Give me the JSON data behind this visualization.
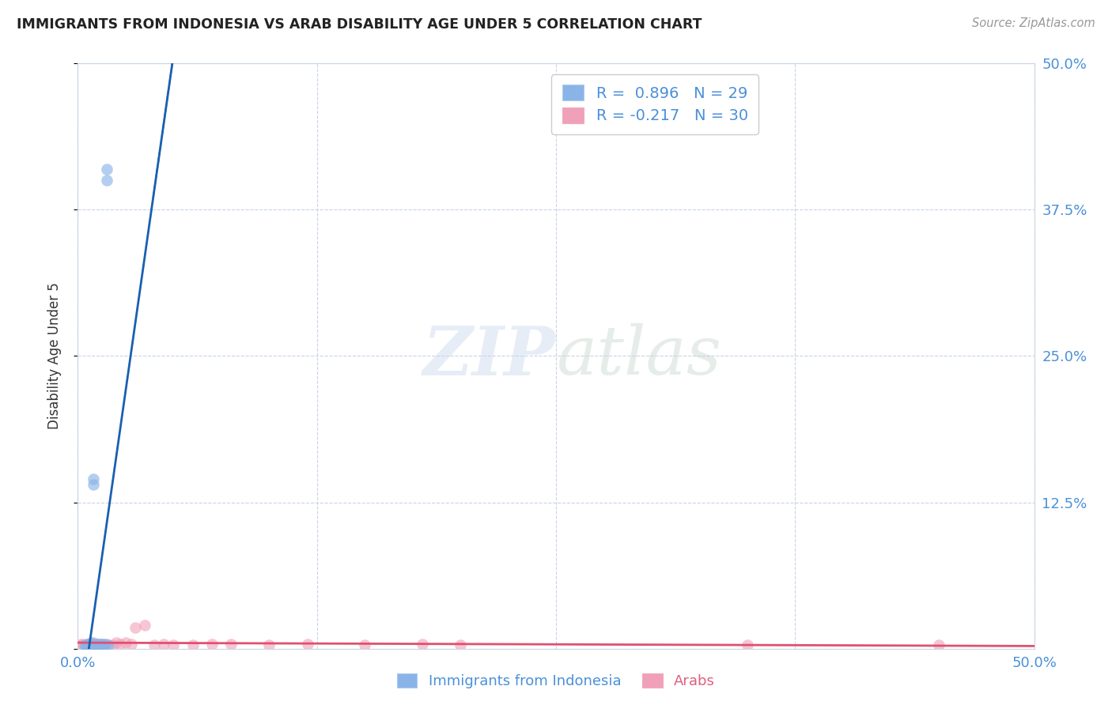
{
  "title": "IMMIGRANTS FROM INDONESIA VS ARAB DISABILITY AGE UNDER 5 CORRELATION CHART",
  "source": "Source: ZipAtlas.com",
  "xlabel_blue": "Immigrants from Indonesia",
  "xlabel_pink": "Arabs",
  "ylabel": "Disability Age Under 5",
  "xlim": [
    0.0,
    0.5
  ],
  "ylim": [
    0.0,
    0.5
  ],
  "xticks": [
    0.0,
    0.125,
    0.25,
    0.375,
    0.5
  ],
  "yticks": [
    0.0,
    0.125,
    0.25,
    0.375,
    0.5
  ],
  "right_ytick_labels": [
    "",
    "12.5%",
    "25.0%",
    "37.5%",
    "50.0%"
  ],
  "xtick_labels": [
    "0.0%",
    "",
    "",
    "",
    "50.0%"
  ],
  "blue_R": 0.896,
  "blue_N": 29,
  "pink_R": -0.217,
  "pink_N": 30,
  "blue_color": "#8ab4e8",
  "pink_color": "#f0a0b8",
  "blue_line_color": "#1a5fb0",
  "pink_line_color": "#e05070",
  "grid_color": "#c8d4e8",
  "background_color": "#ffffff",
  "blue_scatter_x": [
    0.004,
    0.004,
    0.005,
    0.005,
    0.005,
    0.006,
    0.006,
    0.006,
    0.007,
    0.007,
    0.007,
    0.008,
    0.008,
    0.008,
    0.009,
    0.009,
    0.01,
    0.01,
    0.011,
    0.011,
    0.012,
    0.012,
    0.013,
    0.013,
    0.014,
    0.014,
    0.015,
    0.015,
    0.016
  ],
  "blue_scatter_y": [
    0.002,
    0.003,
    0.002,
    0.003,
    0.004,
    0.002,
    0.003,
    0.004,
    0.003,
    0.004,
    0.005,
    0.003,
    0.14,
    0.145,
    0.003,
    0.004,
    0.003,
    0.004,
    0.003,
    0.004,
    0.003,
    0.004,
    0.003,
    0.004,
    0.003,
    0.004,
    0.4,
    0.41,
    0.003
  ],
  "pink_scatter_x": [
    0.001,
    0.002,
    0.003,
    0.004,
    0.005,
    0.006,
    0.008,
    0.01,
    0.012,
    0.015,
    0.018,
    0.02,
    0.022,
    0.025,
    0.028,
    0.03,
    0.035,
    0.04,
    0.045,
    0.05,
    0.06,
    0.07,
    0.08,
    0.1,
    0.12,
    0.15,
    0.18,
    0.2,
    0.35,
    0.45
  ],
  "pink_scatter_y": [
    0.003,
    0.004,
    0.003,
    0.004,
    0.003,
    0.004,
    0.005,
    0.003,
    0.004,
    0.004,
    0.003,
    0.005,
    0.004,
    0.005,
    0.004,
    0.018,
    0.02,
    0.003,
    0.004,
    0.003,
    0.003,
    0.004,
    0.004,
    0.003,
    0.004,
    0.003,
    0.004,
    0.003,
    0.003,
    0.003
  ]
}
